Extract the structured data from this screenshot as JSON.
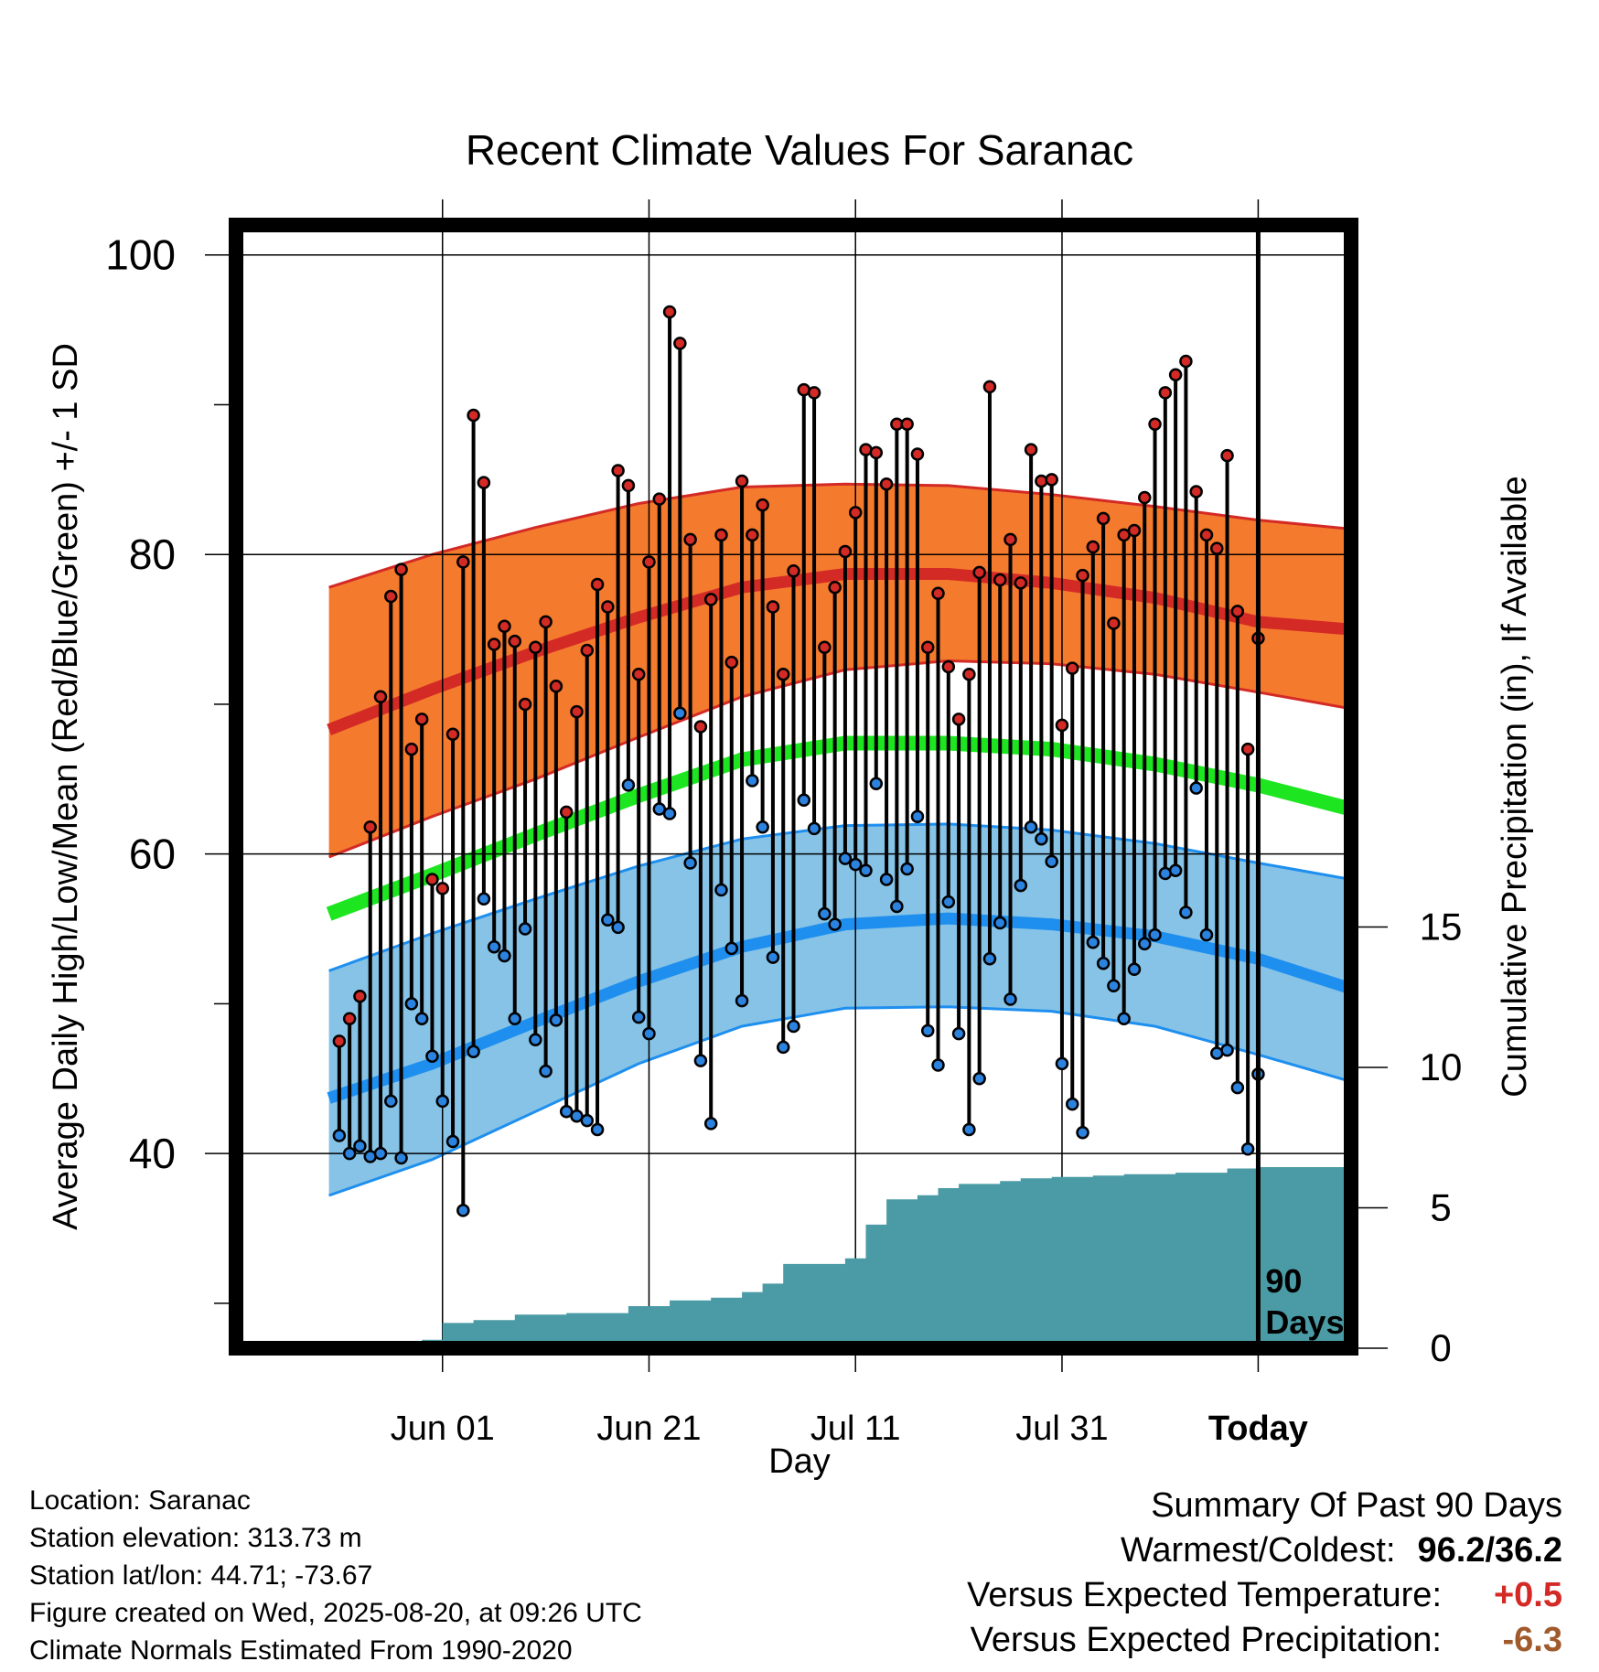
{
  "chart_data": {
    "type": "line",
    "title": "Recent Climate Values For Saranac",
    "xlabel": "Day",
    "ylabel": "Average Daily High/Low/Mean (Red/Blue/Green) +/- 1 SD",
    "ylabel_right": "Cumulative Precipitation (in), If Available",
    "ylim": [
      27,
      102
    ],
    "yticks": [
      40,
      60,
      80,
      100
    ],
    "ylim_right": [
      0,
      40
    ],
    "yticks_right": [
      0,
      5,
      10,
      15
    ],
    "x_range_days": [
      -99,
      9
    ],
    "xticks": [
      {
        "day": -79,
        "label": "Jun 01"
      },
      {
        "day": -59,
        "label": "Jun 21"
      },
      {
        "day": -39,
        "label": "Jul 11"
      },
      {
        "day": -19,
        "label": "Jul 31"
      },
      {
        "day": 0,
        "label": "Today"
      }
    ],
    "today_marker": {
      "day": 0,
      "label_line1": "90",
      "label_line2": "Days"
    },
    "grid": true,
    "colors": {
      "high_band": "#f47a2e",
      "high_mean": "#d42a26",
      "low_band": "#87c3e6",
      "low_mean": "#1e8fef",
      "mean": "#1de620",
      "precip": "#4a9ba5",
      "high_point": "#d42a26",
      "low_point": "#2b83df"
    },
    "normals": {
      "x": [
        -90,
        -80,
        -70,
        -60,
        -50,
        -40,
        -30,
        -20,
        -10,
        0,
        9
      ],
      "high_mean": [
        68.3,
        71.0,
        73.5,
        75.8,
        77.8,
        78.7,
        78.7,
        78.1,
        77.1,
        75.5,
        75.0
      ],
      "high_upper": [
        77.8,
        80.0,
        81.8,
        83.4,
        84.5,
        84.7,
        84.6,
        84.0,
        83.2,
        82.3,
        81.7
      ],
      "high_lower": [
        59.8,
        62.5,
        65.0,
        67.8,
        70.5,
        72.3,
        72.9,
        72.7,
        72.0,
        70.8,
        69.7
      ],
      "mean": [
        56.0,
        58.6,
        61.3,
        63.9,
        66.3,
        67.4,
        67.4,
        67.0,
        66.0,
        64.6,
        63.0
      ],
      "low_mean": [
        43.7,
        46.0,
        48.8,
        51.5,
        53.8,
        55.3,
        55.7,
        55.3,
        54.5,
        53.0,
        51.0
      ],
      "low_upper": [
        52.2,
        54.7,
        57.0,
        59.2,
        61.0,
        61.9,
        62.0,
        61.6,
        60.7,
        59.4,
        58.3
      ],
      "low_lower": [
        37.2,
        39.6,
        42.8,
        46.0,
        48.5,
        49.7,
        49.8,
        49.5,
        48.5,
        46.6,
        44.8
      ]
    },
    "series": [
      {
        "name": "High",
        "x_start_day": -89,
        "values": [
          47.5,
          49.0,
          50.5,
          61.8,
          70.5,
          77.2,
          79.0,
          67.0,
          69.0,
          58.3,
          57.7,
          68.0,
          79.5,
          89.3,
          84.8,
          74.0,
          75.2,
          74.2,
          70.0,
          73.8,
          75.5,
          71.2,
          62.8,
          69.5,
          73.6,
          78.0,
          76.5,
          85.6,
          84.6,
          72.0,
          79.5,
          83.7,
          96.2,
          94.1,
          81.0,
          68.5,
          77.0,
          81.3,
          72.8,
          84.9,
          81.3,
          83.3,
          76.5,
          72.0,
          78.9,
          91.0,
          90.8,
          73.8,
          77.8,
          80.2,
          82.8,
          87.0,
          86.8,
          84.7,
          88.7,
          88.7,
          86.7,
          73.8,
          77.4,
          72.5,
          69.0,
          72.0,
          78.8,
          91.2,
          78.3,
          81.0,
          78.1,
          87.0,
          84.9,
          85.0,
          68.6,
          72.4,
          78.6,
          80.5,
          82.4,
          75.4,
          81.3,
          81.6,
          83.8,
          88.7,
          90.8,
          92.0,
          92.9,
          84.2,
          81.3,
          80.4,
          86.6,
          76.2,
          67.0,
          74.4
        ],
        "low_values": [
          41.2,
          40.0,
          40.5,
          39.8,
          40.0,
          43.5,
          39.7,
          50.0,
          49.0,
          46.5,
          43.5,
          40.8,
          36.2,
          46.8,
          57.0,
          53.8,
          53.2,
          49.0,
          55.0,
          47.6,
          45.5,
          48.9,
          42.8,
          42.5,
          42.2,
          41.6,
          55.6,
          55.1,
          64.6,
          49.1,
          48.0,
          63.0,
          62.7,
          69.4,
          59.4,
          46.2,
          42.0,
          57.6,
          53.7,
          50.2,
          64.9,
          61.8,
          53.1,
          47.1,
          48.5,
          63.6,
          61.7,
          56.0,
          55.3,
          59.7,
          59.3,
          58.9,
          64.7,
          58.3,
          56.5,
          59.0,
          62.5,
          48.2,
          45.9,
          56.8,
          48.0,
          41.6,
          45.0,
          53.0,
          55.4,
          50.3,
          57.9,
          61.8,
          61.0,
          59.5,
          46.0,
          43.3,
          41.4,
          54.1,
          52.7,
          51.2,
          49.0,
          52.3,
          54.0,
          54.6,
          58.7,
          58.9,
          56.1,
          64.4,
          54.6,
          46.7,
          46.9,
          44.4,
          40.3,
          45.3
        ]
      }
    ],
    "precipitation_cumulative": {
      "x": [
        -88,
        -85,
        -81,
        -79,
        -76,
        -72,
        -67,
        -61,
        -57,
        -53,
        -50,
        -48,
        -46,
        -40,
        -38,
        -36,
        -33,
        -31,
        -29,
        -25,
        -23,
        -20,
        -16,
        -13,
        -8,
        -3,
        0,
        9
      ],
      "values": [
        0.0,
        0.05,
        0.3,
        0.9,
        1.0,
        1.2,
        1.25,
        1.5,
        1.7,
        1.8,
        2.0,
        2.3,
        3.0,
        3.2,
        4.4,
        5.3,
        5.45,
        5.7,
        5.85,
        5.95,
        6.05,
        6.1,
        6.15,
        6.2,
        6.25,
        6.4,
        6.45,
        6.45
      ]
    }
  },
  "footer": {
    "location": "Location: Saranac",
    "elevation": "Station elevation: 313.73 m",
    "latlon": "Station lat/lon: 44.71; -73.67",
    "created": "Figure created on Wed, 2025-08-20, at 09:26 UTC",
    "normals": "Climate Normals Estimated From 1990-2020"
  },
  "summary": {
    "heading": "Summary Of Past 90 Days",
    "warmest_coldest_label": "Warmest/Coldest:",
    "warmest_coldest_value": "96.2/36.2",
    "temp_label": "Versus Expected Temperature:",
    "temp_value": "+0.5",
    "temp_color": "#d42a26",
    "precip_label": "Versus Expected Precipitation:",
    "precip_value": "-6.3",
    "precip_color": "#a05a2c"
  }
}
